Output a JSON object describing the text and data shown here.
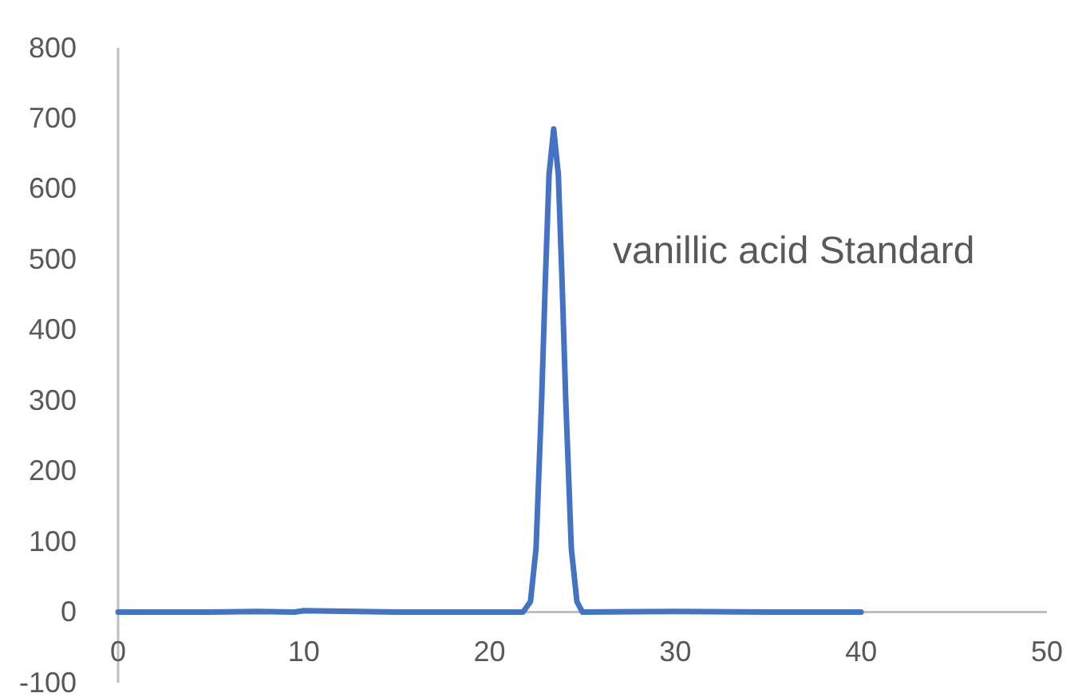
{
  "chart_data": {
    "type": "line",
    "xlim": [
      0,
      50
    ],
    "xticks": [
      0,
      10,
      20,
      30,
      40,
      50
    ],
    "ylim": [
      -100,
      800
    ],
    "yticks": [
      -100,
      0,
      100,
      200,
      300,
      400,
      500,
      600,
      700,
      800
    ],
    "grid": false,
    "legend": false,
    "series": [
      {
        "name": "vanillic acid Standard",
        "color": "#4472c4",
        "x": [
          0,
          5,
          7.5,
          9.5,
          10,
          15,
          20,
          21.8,
          22.2,
          22.5,
          22.8,
          23,
          23.2,
          23.45,
          23.7,
          23.9,
          24.1,
          24.4,
          24.7,
          25,
          30,
          35,
          40
        ],
        "values": [
          0,
          0,
          1,
          0,
          2,
          0,
          0,
          0,
          15,
          90,
          300,
          470,
          620,
          685,
          620,
          470,
          300,
          90,
          15,
          0,
          1,
          0,
          0
        ]
      }
    ]
  }
}
